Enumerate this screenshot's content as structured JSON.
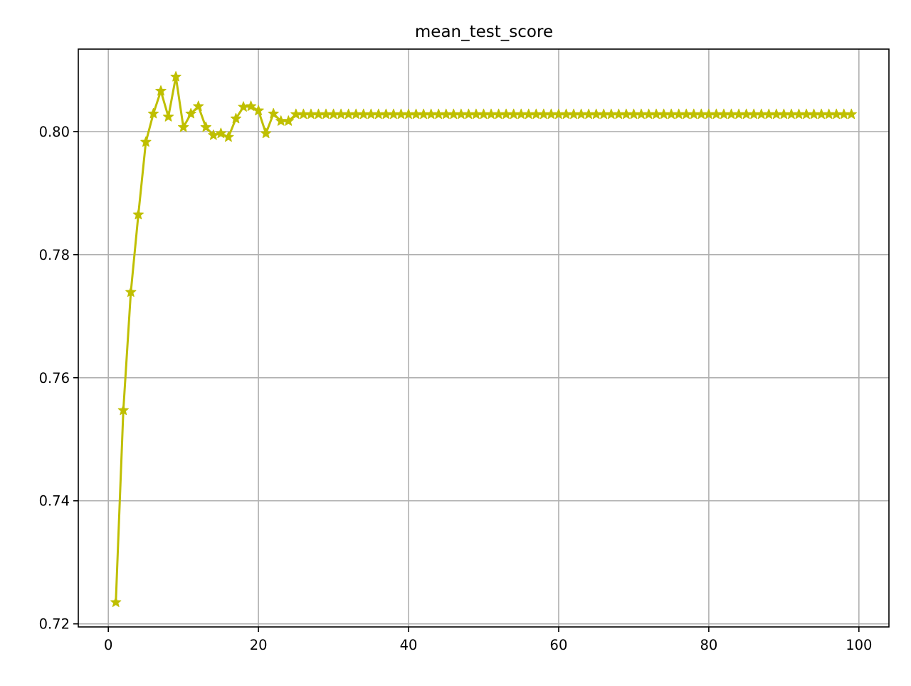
{
  "chart_data": {
    "type": "line",
    "title": "mean_test_score",
    "xlabel": "",
    "ylabel": "",
    "xlim": [
      -4,
      104
    ],
    "ylim": [
      0.7195,
      0.8134
    ],
    "x_ticks": [
      0,
      20,
      40,
      60,
      80,
      100
    ],
    "y_ticks": [
      0.72,
      0.74,
      0.76,
      0.78,
      0.8
    ],
    "x_tick_labels": [
      "0",
      "20",
      "40",
      "60",
      "80",
      "100"
    ],
    "y_tick_labels": [
      "0.72",
      "0.74",
      "0.76",
      "0.78",
      "0.80"
    ],
    "grid": true,
    "legend": "none",
    "marker": "star",
    "series": [
      {
        "color": "#bfbf00",
        "x": [
          1,
          2,
          3,
          4,
          5,
          6,
          7,
          8,
          9,
          10,
          11,
          12,
          13,
          14,
          15,
          16,
          17,
          18,
          19,
          20,
          21,
          22,
          23,
          24,
          25,
          26,
          27,
          28,
          29,
          30,
          31,
          32,
          33,
          34,
          35,
          36,
          37,
          38,
          39,
          40,
          41,
          42,
          43,
          44,
          45,
          46,
          47,
          48,
          49,
          50,
          51,
          52,
          53,
          54,
          55,
          56,
          57,
          58,
          59,
          60,
          61,
          62,
          63,
          64,
          65,
          66,
          67,
          68,
          69,
          70,
          71,
          72,
          73,
          74,
          75,
          76,
          77,
          78,
          79,
          80,
          81,
          82,
          83,
          84,
          85,
          86,
          87,
          88,
          89,
          90,
          91,
          92,
          93,
          94,
          95,
          96,
          97,
          98,
          99
        ],
        "y": [
          0.7235,
          0.7547,
          0.7739,
          0.7865,
          0.7983,
          0.8029,
          0.8066,
          0.8024,
          0.8089,
          0.8007,
          0.8029,
          0.8041,
          0.8007,
          0.7994,
          0.7997,
          0.7991,
          0.8021,
          0.804,
          0.8041,
          0.8034,
          0.7997,
          0.8029,
          0.8017,
          0.8017,
          0.8028,
          0.8028,
          0.8028,
          0.8028,
          0.8028,
          0.8028,
          0.8028,
          0.8028,
          0.8028,
          0.8028,
          0.8028,
          0.8028,
          0.8028,
          0.8028,
          0.8028,
          0.8028,
          0.8028,
          0.8028,
          0.8028,
          0.8028,
          0.8028,
          0.8028,
          0.8028,
          0.8028,
          0.8028,
          0.8028,
          0.8028,
          0.8028,
          0.8028,
          0.8028,
          0.8028,
          0.8028,
          0.8028,
          0.8028,
          0.8028,
          0.8028,
          0.8028,
          0.8028,
          0.8028,
          0.8028,
          0.8028,
          0.8028,
          0.8028,
          0.8028,
          0.8028,
          0.8028,
          0.8028,
          0.8028,
          0.8028,
          0.8028,
          0.8028,
          0.8028,
          0.8028,
          0.8028,
          0.8028,
          0.8028,
          0.8028,
          0.8028,
          0.8028,
          0.8028,
          0.8028,
          0.8028,
          0.8028,
          0.8028,
          0.8028,
          0.8028,
          0.8028,
          0.8028,
          0.8028,
          0.8028,
          0.8028,
          0.8028,
          0.8028,
          0.8028,
          0.8028
        ]
      }
    ]
  }
}
